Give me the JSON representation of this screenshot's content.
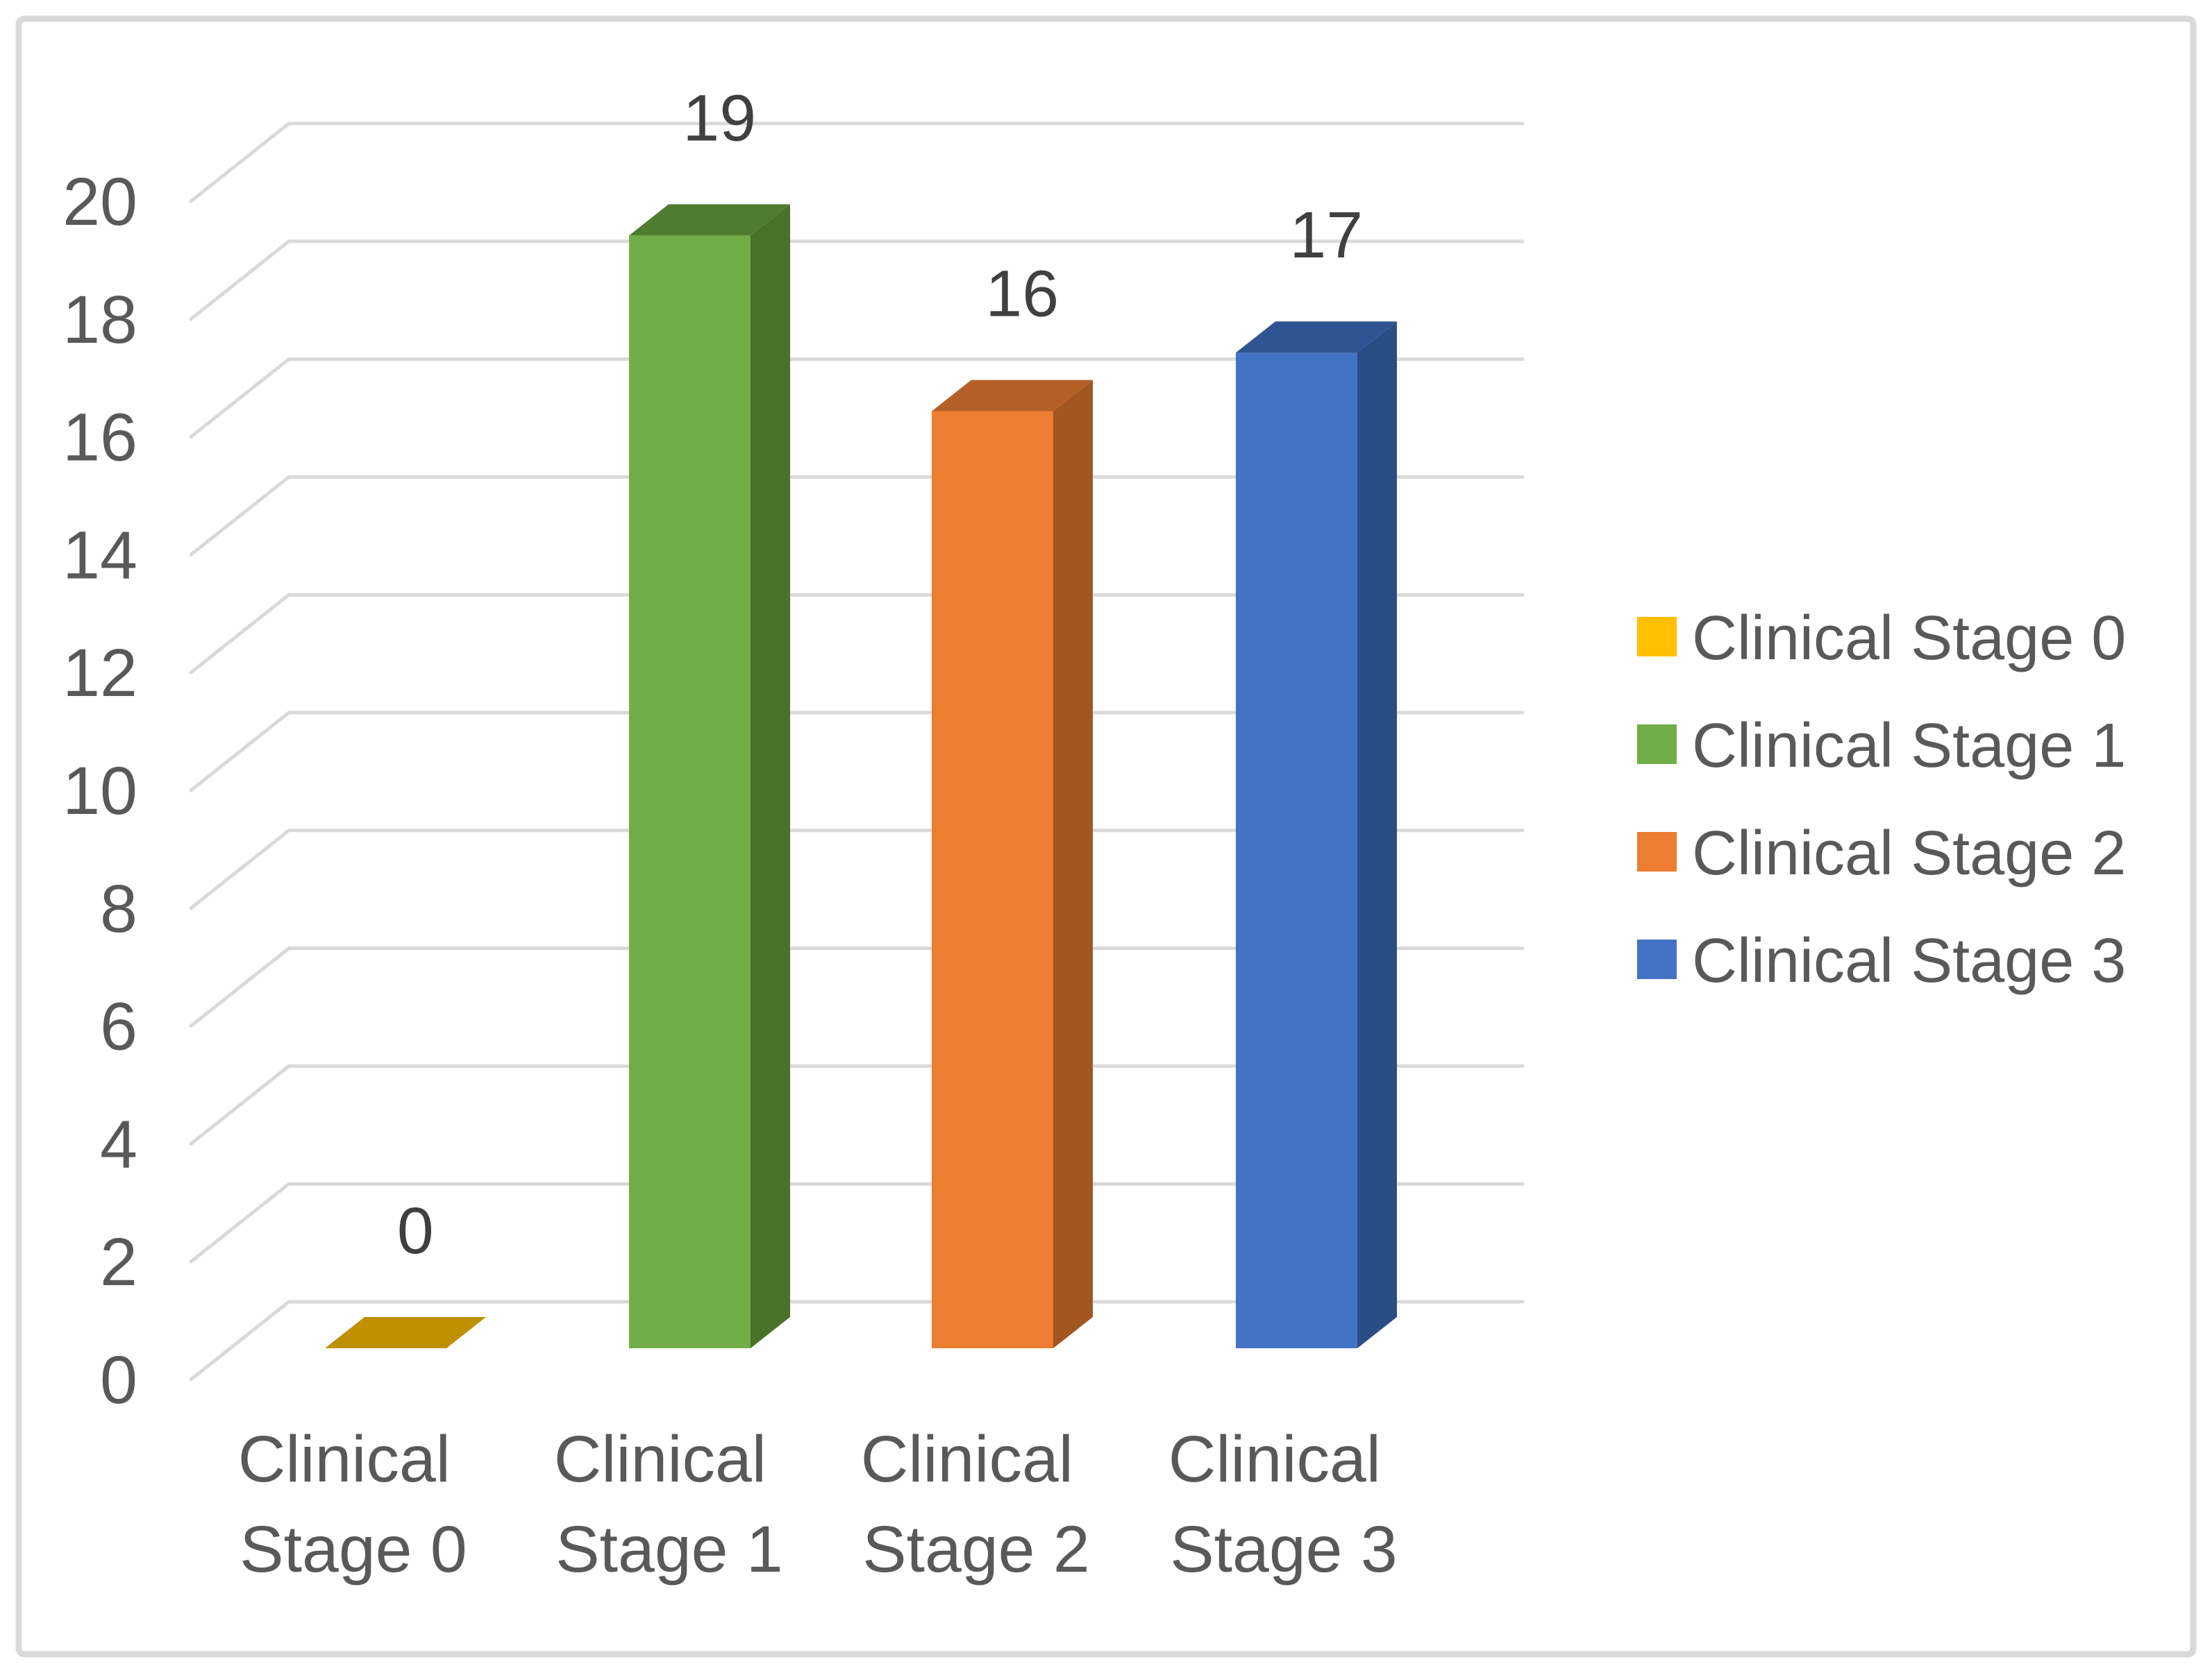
{
  "chart_data": {
    "type": "bar",
    "variant": "3d-column",
    "title": "",
    "xlabel": "",
    "ylabel": "",
    "categories": [
      "Clinical Stage 0",
      "Clinical Stage 1",
      "Clinical Stage 2",
      "Clinical Stage 3"
    ],
    "categories_lines": [
      [
        "Clinical",
        "Stage 0"
      ],
      [
        "Clinical",
        "Stage 1"
      ],
      [
        "Clinical",
        "Stage 2"
      ],
      [
        "Clinical",
        "Stage 3"
      ]
    ],
    "values": [
      0,
      19,
      16,
      17
    ],
    "data_labels": [
      "0",
      "19",
      "16",
      "17"
    ],
    "yticks": [
      0,
      2,
      4,
      6,
      8,
      10,
      12,
      14,
      16,
      18,
      20
    ],
    "ylim": [
      0,
      20
    ],
    "grid": true,
    "legend_position": "right",
    "legend": {
      "items": [
        {
          "label": "Clinical Stage 0"
        },
        {
          "label": "Clinical Stage 1"
        },
        {
          "label": "Clinical Stage 2"
        },
        {
          "label": "Clinical Stage 3"
        }
      ]
    },
    "series_colors": [
      {
        "name": "Clinical Stage 0",
        "front": "#FFC000",
        "top": "#BF9000",
        "side": "#A67B00"
      },
      {
        "name": "Clinical Stage 1",
        "front": "#70AD47",
        "top": "#507C31",
        "side": "#4A7129"
      },
      {
        "name": "Clinical Stage 2",
        "front": "#ED7D31",
        "top": "#B45F25",
        "side": "#A25620"
      },
      {
        "name": "Clinical Stage 3",
        "front": "#4472C4",
        "top": "#2F5494",
        "side": "#2B4D86"
      }
    ],
    "axis_text_color": "#595959",
    "data_label_color": "#404040",
    "gridline_color": "#D9D9D9",
    "border_color": "#D9D9D9",
    "background": "#FFFFFF"
  }
}
